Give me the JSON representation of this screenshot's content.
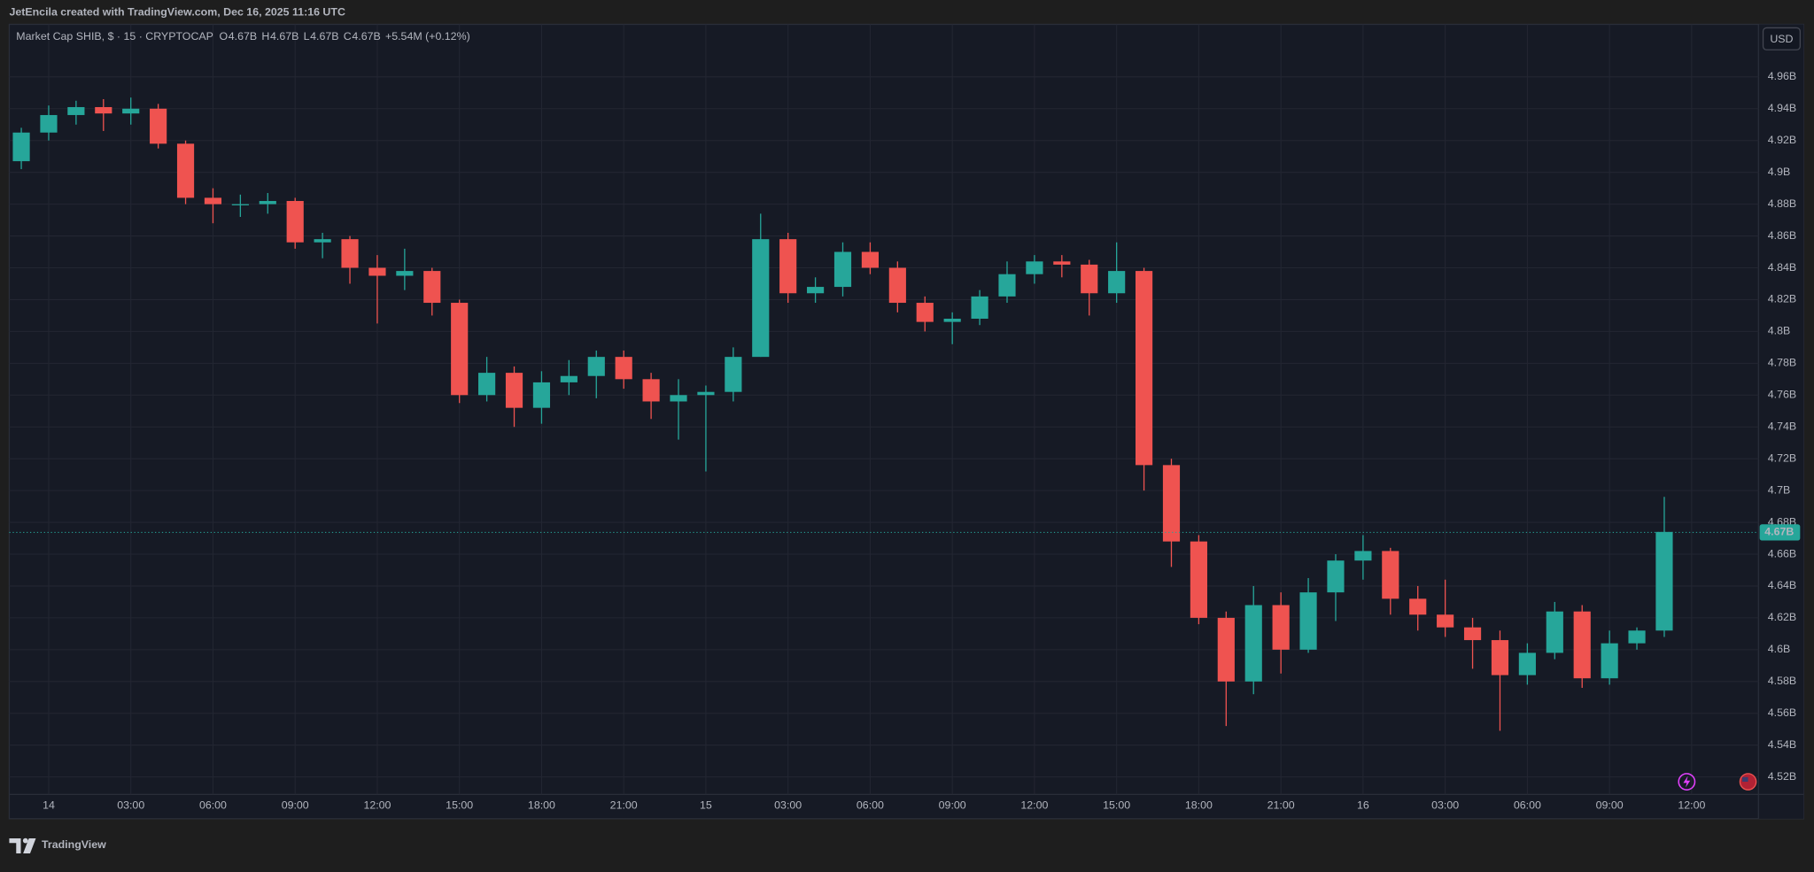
{
  "attribution": "JetEncila created with TradingView.com, Dec 16, 2025 11:16 UTC",
  "brand": "TradingView",
  "currency": "USD",
  "chart_data": {
    "type": "candlestick",
    "title": "Market Cap SHIB, $ · 15 · CRYPTOCAP",
    "ohlc_legend": [
      {
        "label": "O",
        "value": "4.67B"
      },
      {
        "label": "H",
        "value": "4.67B"
      },
      {
        "label": "L",
        "value": "4.67B"
      },
      {
        "label": "C",
        "value": "4.67B"
      }
    ],
    "change": "+5.54M (+0.12%)",
    "up_color": "#26a69a",
    "down_color": "#ef5350",
    "grid": true,
    "x": [
      -1,
      0,
      1,
      2,
      3,
      4,
      5,
      6,
      7,
      8,
      9,
      10,
      11,
      12,
      13,
      14,
      15,
      16,
      17,
      18,
      19,
      20,
      21,
      22,
      23,
      24,
      25,
      26,
      27,
      28,
      29,
      30,
      31,
      32,
      33,
      34,
      35,
      36,
      37,
      38,
      39,
      40,
      41,
      42,
      43,
      44,
      45,
      46,
      47,
      48,
      49,
      50,
      51,
      52,
      53,
      54,
      55,
      56,
      57,
      58,
      59
    ],
    "open": [
      4.907,
      4.925,
      4.936,
      4.941,
      4.937,
      4.94,
      4.918,
      4.884,
      4.88,
      4.88,
      4.882,
      4.856,
      4.858,
      4.84,
      4.835,
      4.838,
      4.818,
      4.76,
      4.774,
      4.752,
      4.768,
      4.772,
      4.784,
      4.77,
      4.756,
      4.76,
      4.762,
      4.784,
      4.858,
      4.824,
      4.828,
      4.85,
      4.84,
      4.818,
      4.806,
      4.808,
      4.822,
      4.836,
      4.844,
      4.842,
      4.824,
      4.838,
      4.716,
      4.668,
      4.62,
      4.58,
      4.628,
      4.6,
      4.636,
      4.656,
      4.662,
      4.632,
      4.622,
      4.614,
      4.606,
      4.584,
      4.598,
      4.624,
      4.582,
      4.604,
      4.612
    ],
    "high": [
      4.928,
      4.942,
      4.945,
      4.946,
      4.947,
      4.943,
      4.92,
      4.89,
      4.886,
      4.887,
      4.884,
      4.862,
      4.86,
      4.848,
      4.852,
      4.84,
      4.82,
      4.784,
      4.778,
      4.775,
      4.782,
      4.788,
      4.788,
      4.774,
      4.77,
      4.766,
      4.79,
      4.874,
      4.862,
      4.834,
      4.856,
      4.856,
      4.844,
      4.822,
      4.812,
      4.826,
      4.844,
      4.848,
      4.848,
      4.845,
      4.856,
      4.84,
      4.72,
      4.672,
      4.624,
      4.64,
      4.636,
      4.645,
      4.66,
      4.672,
      4.664,
      4.64,
      4.644,
      4.62,
      4.612,
      4.604,
      4.63,
      4.628,
      4.612,
      4.614,
      4.696
    ],
    "low": [
      4.902,
      4.92,
      4.93,
      4.926,
      4.93,
      4.915,
      4.88,
      4.868,
      4.872,
      4.874,
      4.852,
      4.846,
      4.83,
      4.805,
      4.826,
      4.81,
      4.755,
      4.756,
      4.74,
      4.742,
      4.76,
      4.758,
      4.764,
      4.745,
      4.732,
      4.712,
      4.756,
      4.784,
      4.818,
      4.818,
      4.822,
      4.836,
      4.812,
      4.8,
      4.792,
      4.804,
      4.818,
      4.83,
      4.834,
      4.81,
      4.818,
      4.7,
      4.652,
      4.616,
      4.552,
      4.572,
      4.585,
      4.598,
      4.618,
      4.644,
      4.622,
      4.612,
      4.608,
      4.588,
      4.549,
      4.578,
      4.594,
      4.576,
      4.578,
      4.6,
      4.608
    ],
    "close": [
      4.925,
      4.936,
      4.941,
      4.937,
      4.94,
      4.918,
      4.884,
      4.88,
      4.88,
      4.882,
      4.856,
      4.858,
      4.84,
      4.835,
      4.838,
      4.818,
      4.76,
      4.774,
      4.752,
      4.768,
      4.772,
      4.784,
      4.77,
      4.756,
      4.76,
      4.762,
      4.784,
      4.858,
      4.824,
      4.828,
      4.85,
      4.84,
      4.818,
      4.806,
      4.808,
      4.822,
      4.836,
      4.844,
      4.842,
      4.824,
      4.838,
      4.716,
      4.668,
      4.62,
      4.58,
      4.628,
      4.6,
      4.636,
      4.656,
      4.662,
      4.632,
      4.622,
      4.614,
      4.606,
      4.584,
      4.598,
      4.624,
      4.582,
      4.604,
      4.612,
      4.674
    ],
    "last_price": {
      "value": 4.6737,
      "label": "4.67B"
    },
    "xlim": [
      -1.44,
      62.44
    ],
    "ylim": [
      4.509,
      4.993
    ],
    "xticks": [
      {
        "value": 0,
        "label": "14"
      },
      {
        "value": 3,
        "label": "03:00"
      },
      {
        "value": 6,
        "label": "06:00"
      },
      {
        "value": 9,
        "label": "09:00"
      },
      {
        "value": 12,
        "label": "12:00"
      },
      {
        "value": 15,
        "label": "15:00"
      },
      {
        "value": 18,
        "label": "18:00"
      },
      {
        "value": 21,
        "label": "21:00"
      },
      {
        "value": 24,
        "label": "15"
      },
      {
        "value": 27,
        "label": "03:00"
      },
      {
        "value": 30,
        "label": "06:00"
      },
      {
        "value": 33,
        "label": "09:00"
      },
      {
        "value": 36,
        "label": "12:00"
      },
      {
        "value": 39,
        "label": "15:00"
      },
      {
        "value": 42,
        "label": "18:00"
      },
      {
        "value": 45,
        "label": "21:00"
      },
      {
        "value": 48,
        "label": "16"
      },
      {
        "value": 51,
        "label": "03:00"
      },
      {
        "value": 54,
        "label": "06:00"
      },
      {
        "value": 57,
        "label": "09:00"
      },
      {
        "value": 60,
        "label": "12:00"
      }
    ],
    "yticks": [
      {
        "value": 4.52,
        "label": "4.52B"
      },
      {
        "value": 4.54,
        "label": "4.54B"
      },
      {
        "value": 4.56,
        "label": "4.56B"
      },
      {
        "value": 4.58,
        "label": "4.58B"
      },
      {
        "value": 4.6,
        "label": "4.6B"
      },
      {
        "value": 4.62,
        "label": "4.62B"
      },
      {
        "value": 4.64,
        "label": "4.64B"
      },
      {
        "value": 4.66,
        "label": "4.66B"
      },
      {
        "value": 4.68,
        "label": "4.68B"
      },
      {
        "value": 4.7,
        "label": "4.7B"
      },
      {
        "value": 4.72,
        "label": "4.72B"
      },
      {
        "value": 4.74,
        "label": "4.74B"
      },
      {
        "value": 4.76,
        "label": "4.76B"
      },
      {
        "value": 4.78,
        "label": "4.78B"
      },
      {
        "value": 4.8,
        "label": "4.8B"
      },
      {
        "value": 4.82,
        "label": "4.82B"
      },
      {
        "value": 4.84,
        "label": "4.84B"
      },
      {
        "value": 4.86,
        "label": "4.86B"
      },
      {
        "value": 4.88,
        "label": "4.88B"
      },
      {
        "value": 4.9,
        "label": "4.9B"
      },
      {
        "value": 4.92,
        "label": "4.92B"
      },
      {
        "value": 4.94,
        "label": "4.94B"
      },
      {
        "value": 4.96,
        "label": "4.96B"
      }
    ]
  }
}
